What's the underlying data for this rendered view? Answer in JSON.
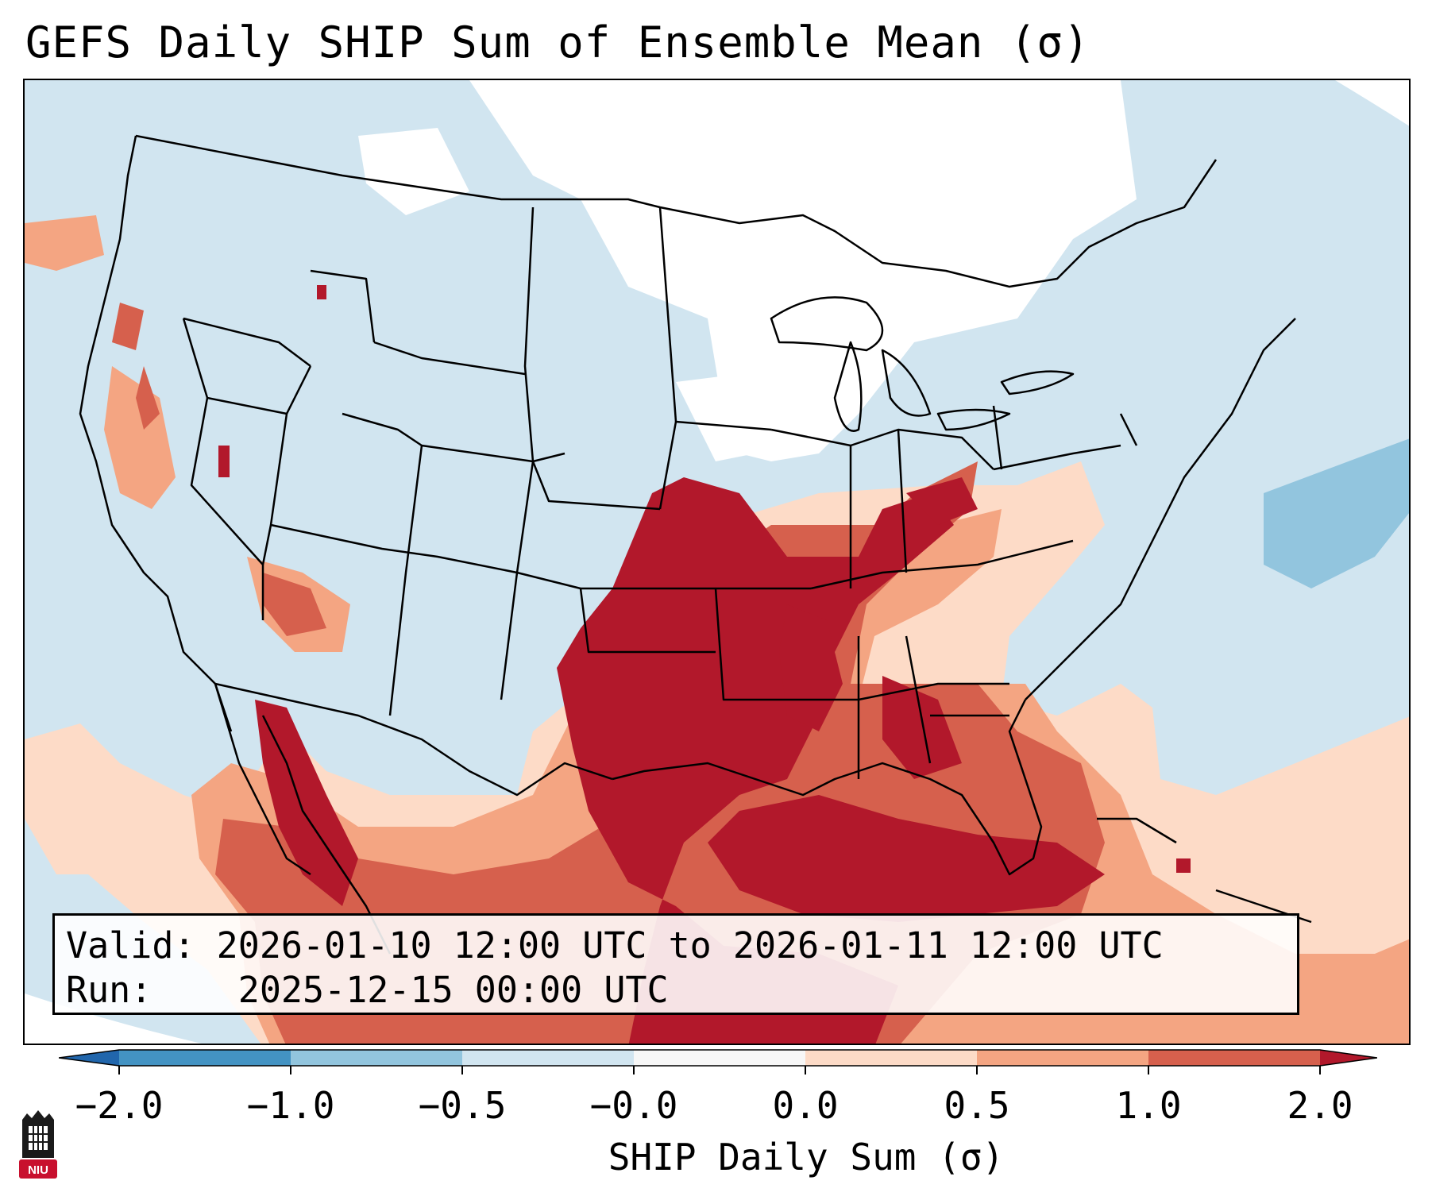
{
  "title": "GEFS Daily SHIP Sum of Ensemble Mean (σ)",
  "info": {
    "valid_label": "Valid:",
    "valid_value": "2026-01-10 12:00 UTC to 2026-01-11 12:00 UTC",
    "run_label": "Run:",
    "run_value": "2025-12-15 00:00 UTC"
  },
  "colorbar": {
    "label": "SHIP Daily Sum (σ)",
    "ticks": [
      "−2.0",
      "−1.0",
      "−0.5",
      "−0.0",
      "0.0",
      "0.5",
      "1.0",
      "2.0"
    ],
    "bin_colors": [
      "#4393c3",
      "#92c5de",
      "#d1e5f0",
      "#f7f7f7",
      "#fddbc7",
      "#f4a582",
      "#d6604d",
      "#b2182b"
    ],
    "under_color": "#2166ac",
    "over_color": "#67001f"
  },
  "map": {
    "region": "CONUS",
    "ocean_color": "#d1e5f0",
    "positive_anomaly_colors": [
      "#fddbc7",
      "#f4a582",
      "#d6604d",
      "#b2182b"
    ]
  },
  "logo_text": "NIU"
}
